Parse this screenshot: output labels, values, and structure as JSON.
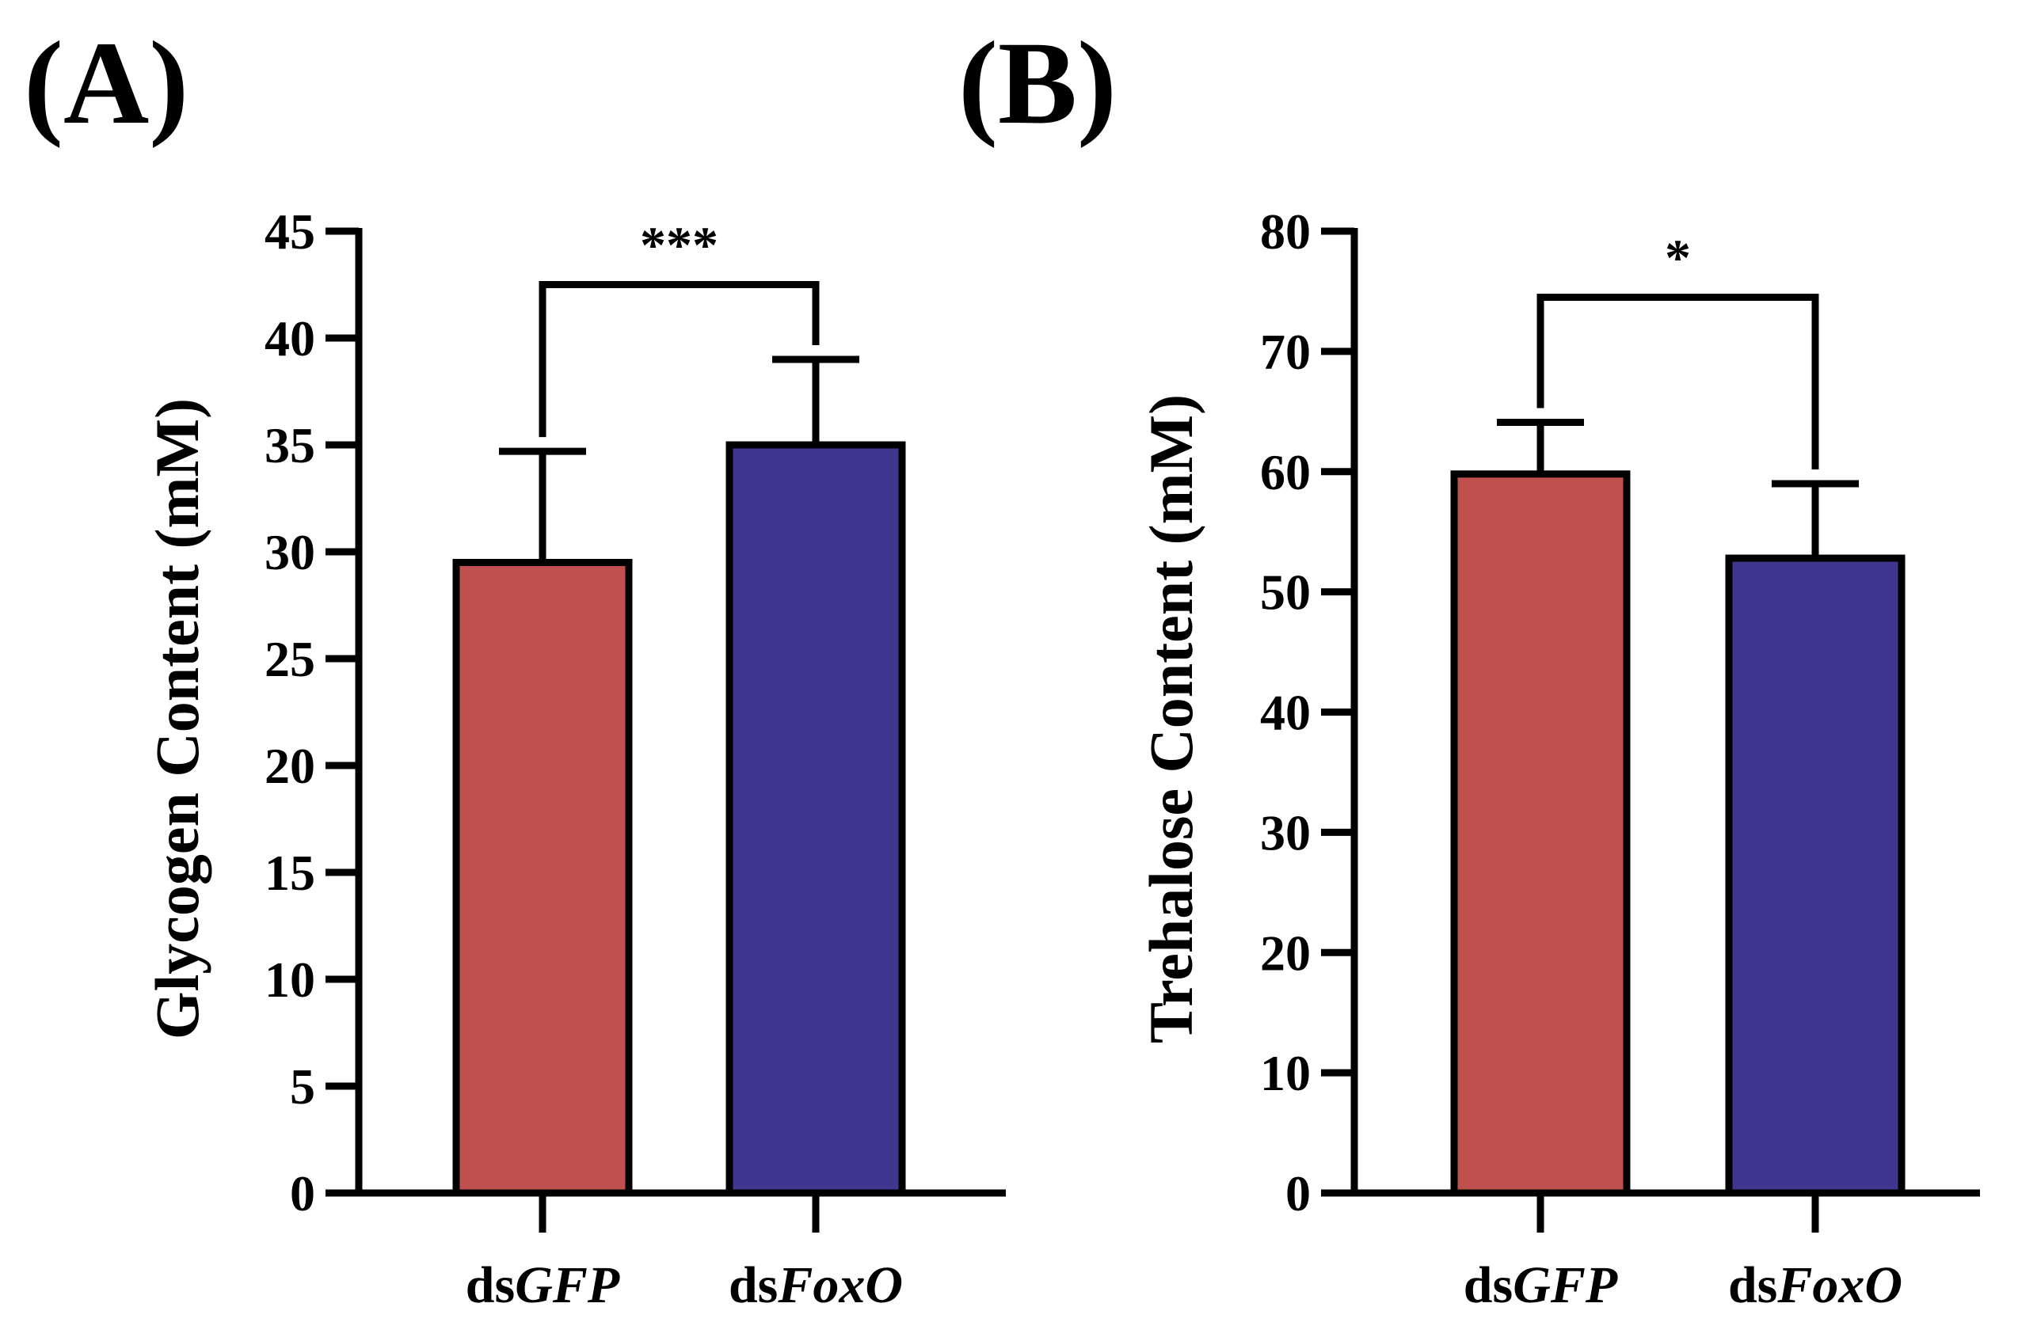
{
  "chart_data": [
    {
      "panel": "(A)",
      "type": "bar",
      "title": "",
      "xlabel": "",
      "ylabel": "Glycogen Content (mM)",
      "ylim": [
        0,
        45
      ],
      "ytick_step": 5,
      "yticks": [
        "0",
        "5",
        "10",
        "15",
        "20",
        "25",
        "30",
        "35",
        "40",
        "45"
      ],
      "categories": [
        {
          "prefix": "ds",
          "gene": "GFP"
        },
        {
          "prefix": "ds",
          "gene": "FoxO"
        }
      ],
      "values": [
        29.5,
        35.0
      ],
      "errors": [
        5.2,
        4.0
      ],
      "colors": [
        "#c0504d",
        "#3f3690"
      ],
      "significance": {
        "label": "***",
        "bracket_y": 42.5
      }
    },
    {
      "panel": "(B)",
      "type": "bar",
      "title": "",
      "xlabel": "",
      "ylabel": "Trehalose Content (mM)",
      "ylim": [
        0,
        80
      ],
      "ytick_step": 10,
      "yticks": [
        "0",
        "10",
        "20",
        "30",
        "40",
        "50",
        "60",
        "70",
        "80"
      ],
      "categories": [
        {
          "prefix": "ds",
          "gene": "GFP"
        },
        {
          "prefix": "ds",
          "gene": "FoxO"
        }
      ],
      "values": [
        59.8,
        52.8
      ],
      "errors": [
        4.3,
        6.2
      ],
      "colors": [
        "#c0504d",
        "#3f3690"
      ],
      "significance": {
        "label": "*",
        "bracket_y": 74.5
      }
    }
  ]
}
